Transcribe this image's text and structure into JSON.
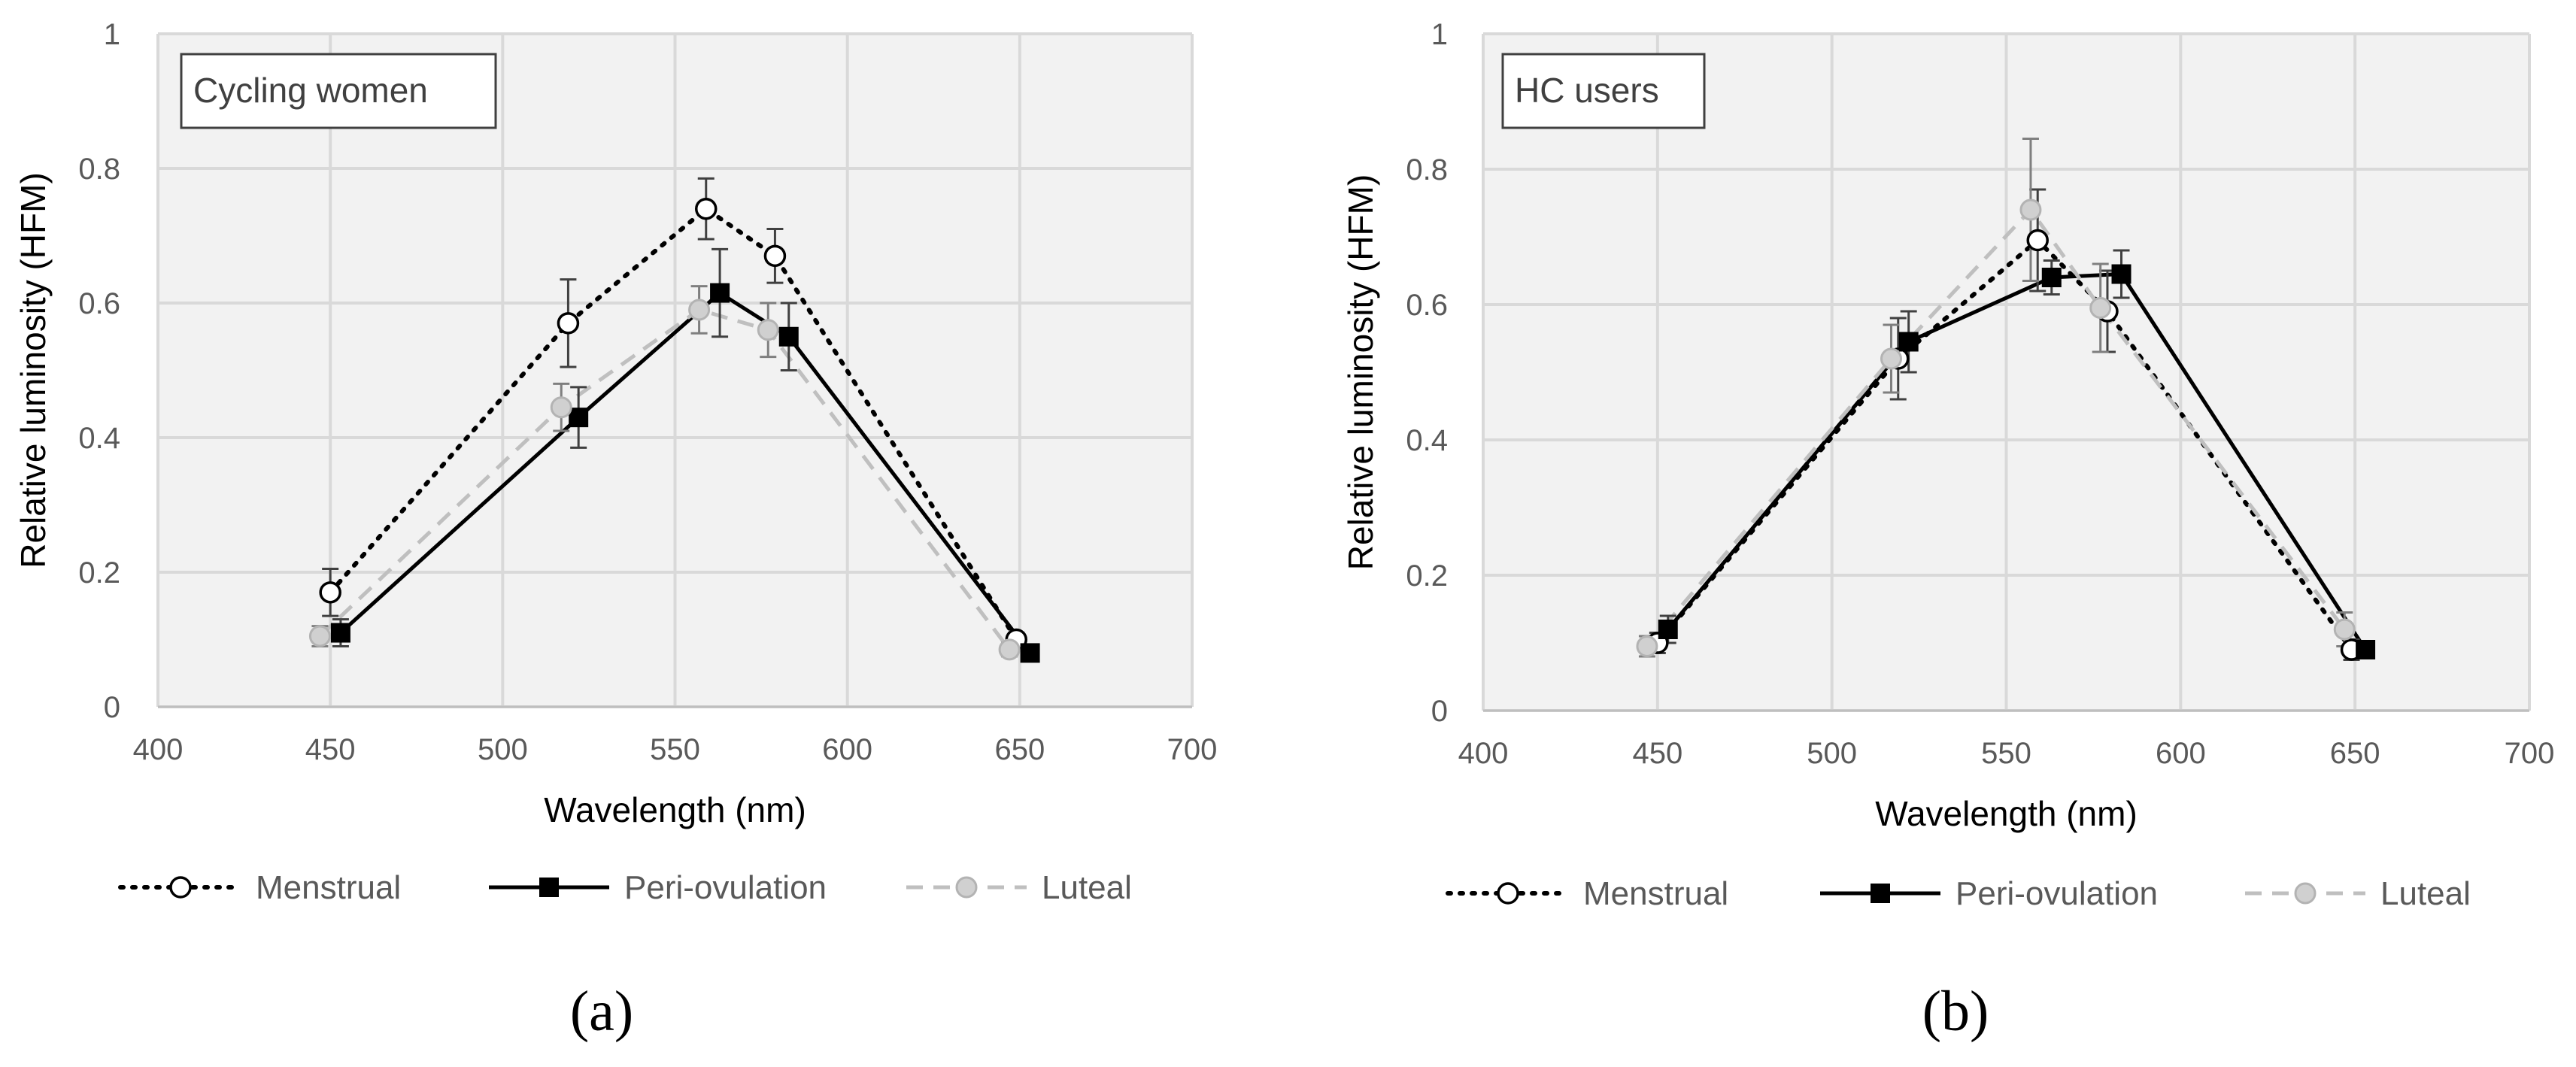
{
  "chart_data": [
    {
      "type": "line",
      "panel_label": "(a)",
      "inset_label": "Cycling women",
      "xlabel": "Wavelength (nm)",
      "ylabel": "Relative luminosity (HFM)",
      "xlim": [
        400,
        700
      ],
      "ylim": [
        0,
        1
      ],
      "x_ticks": [
        "400",
        "450",
        "500",
        "550",
        "600",
        "650",
        "700"
      ],
      "y_ticks": [
        "0",
        "0.2",
        "0.4",
        "0.6",
        "0.8",
        "1"
      ],
      "grid": true,
      "legend_position": "bottom",
      "series": [
        {
          "name": "Menstrual",
          "style": "dotted",
          "marker": "open-circle",
          "color": "#000000",
          "x": [
            450,
            519,
            559,
            579,
            649
          ],
          "y": [
            0.17,
            0.57,
            0.74,
            0.67,
            0.1
          ],
          "err": [
            0.035,
            0.065,
            0.045,
            0.04,
            0.01
          ]
        },
        {
          "name": "Peri-ovulation",
          "style": "solid",
          "marker": "filled-square",
          "color": "#000000",
          "x": [
            453,
            522,
            563,
            583,
            653
          ],
          "y": [
            0.11,
            0.43,
            0.615,
            0.55,
            0.08
          ],
          "err": [
            0.02,
            0.045,
            0.065,
            0.05,
            0.01
          ]
        },
        {
          "name": "Luteal",
          "style": "dashed",
          "marker": "grey-circle",
          "color": "#a6a6a6",
          "x": [
            447,
            517,
            557,
            577,
            647
          ],
          "y": [
            0.105,
            0.445,
            0.59,
            0.56,
            0.085
          ],
          "err": [
            0.015,
            0.035,
            0.035,
            0.04,
            0.01
          ]
        }
      ]
    },
    {
      "type": "line",
      "panel_label": "(b)",
      "inset_label": "HC users",
      "xlabel": "Wavelength (nm)",
      "ylabel": "Relative luminosity (HFM)",
      "xlim": [
        400,
        700
      ],
      "ylim": [
        0,
        1
      ],
      "x_ticks": [
        "400",
        "450",
        "500",
        "550",
        "600",
        "650",
        "700"
      ],
      "y_ticks": [
        "0",
        "0.2",
        "0.4",
        "0.6",
        "0.8",
        "1"
      ],
      "grid": true,
      "legend_position": "bottom",
      "series": [
        {
          "name": "Menstrual",
          "style": "dotted",
          "marker": "open-circle",
          "color": "#000000",
          "x": [
            450,
            519,
            559,
            579,
            649
          ],
          "y": [
            0.1,
            0.52,
            0.695,
            0.59,
            0.09
          ],
          "err": [
            0.015,
            0.06,
            0.075,
            0.06,
            0.015
          ]
        },
        {
          "name": "Peri-ovulation",
          "style": "solid",
          "marker": "filled-square",
          "color": "#000000",
          "x": [
            453,
            522,
            563,
            583,
            653
          ],
          "y": [
            0.12,
            0.545,
            0.64,
            0.645,
            0.09
          ],
          "err": [
            0.02,
            0.045,
            0.025,
            0.035,
            0.01
          ]
        },
        {
          "name": "Luteal",
          "style": "dashed",
          "marker": "grey-circle",
          "color": "#a6a6a6",
          "x": [
            447,
            517,
            557,
            577,
            647
          ],
          "y": [
            0.095,
            0.52,
            0.74,
            0.595,
            0.12
          ],
          "err": [
            0.015,
            0.05,
            0.105,
            0.065,
            0.025
          ]
        }
      ]
    }
  ]
}
